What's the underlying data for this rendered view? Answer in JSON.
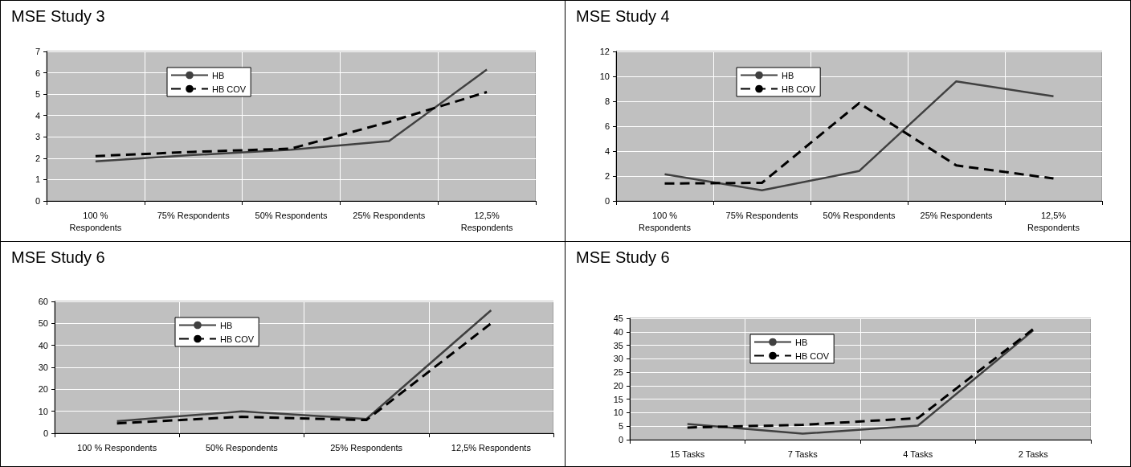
{
  "chart_data": [
    {
      "type": "line",
      "title": "MSE Study 3",
      "categories": [
        "100 %\nRespondents",
        "75% Respondents",
        "50% Respondents",
        "25% Respondents",
        "12,5%\nRespondents"
      ],
      "series": [
        {
          "name": "HB",
          "color": "#404040",
          "line_style": "solid",
          "values": [
            1.85,
            2.15,
            2.4,
            2.8,
            6.15
          ]
        },
        {
          "name": "HB COV",
          "color": "#000000",
          "line_style": "dashed",
          "values": [
            2.1,
            2.3,
            2.45,
            3.7,
            5.1
          ]
        }
      ],
      "ylim": [
        0,
        7
      ],
      "yticks": [
        0,
        1,
        2,
        3,
        4,
        5,
        6,
        7
      ],
      "grid": true,
      "legend": "top left",
      "marker": "none"
    },
    {
      "type": "line",
      "title": "MSE Study 4",
      "categories": [
        "100 %\nRespondents",
        "75% Respondents",
        "50% Respondents",
        "25% Respondents",
        "12,5%\nRespondents"
      ],
      "series": [
        {
          "name": "HB",
          "color": "#404040",
          "line_style": "solid",
          "values": [
            2.15,
            0.85,
            2.4,
            9.6,
            8.4
          ]
        },
        {
          "name": "HB COV",
          "color": "#000000",
          "line_style": "dashed",
          "values": [
            1.4,
            1.45,
            7.85,
            2.85,
            1.8
          ]
        }
      ],
      "ylim": [
        0,
        12
      ],
      "yticks": [
        0,
        2,
        4,
        6,
        8,
        10,
        12
      ],
      "grid": true,
      "legend": "top left",
      "marker": "none"
    },
    {
      "type": "line",
      "title": "MSE Study 6",
      "categories": [
        "100 % Respondents",
        "50% Respondents",
        "25% Respondents",
        "12,5% Respondents"
      ],
      "series": [
        {
          "name": "HB",
          "color": "#404040",
          "line_style": "solid",
          "values": [
            5.5,
            10,
            6.5,
            56
          ]
        },
        {
          "name": "HB COV",
          "color": "#000000",
          "line_style": "dashed",
          "values": [
            4.5,
            7.5,
            6,
            50
          ]
        }
      ],
      "ylim": [
        0,
        60
      ],
      "yticks": [
        0,
        10,
        20,
        30,
        40,
        50,
        60
      ],
      "grid": true,
      "legend": "top left",
      "marker": "none"
    },
    {
      "type": "line",
      "title": "MSE Study 6",
      "categories": [
        "15 Tasks",
        "7 Tasks",
        "4 Tasks",
        "2 Tasks"
      ],
      "series": [
        {
          "name": "HB",
          "color": "#404040",
          "line_style": "solid",
          "values": [
            5.8,
            2.2,
            5.2,
            40.5
          ]
        },
        {
          "name": "HB COV",
          "color": "#000000",
          "line_style": "dashed",
          "values": [
            4.5,
            5.5,
            8,
            41
          ]
        }
      ],
      "ylim": [
        0,
        45
      ],
      "yticks": [
        0,
        5,
        10,
        15,
        20,
        25,
        30,
        35,
        40,
        45
      ],
      "grid": true,
      "legend": "top left",
      "marker": "none"
    }
  ]
}
